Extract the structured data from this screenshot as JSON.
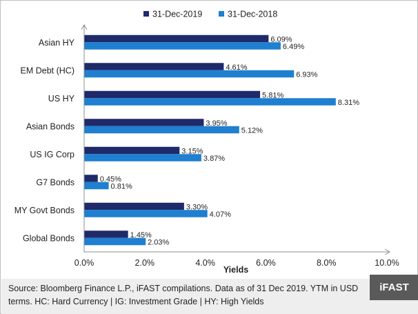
{
  "chart_data": {
    "type": "bar",
    "orientation": "horizontal",
    "categories": [
      "Asian HY",
      "EM Debt (HC)",
      "US HY",
      "Asian Bonds",
      "US IG Corp",
      "G7 Bonds",
      "MY Govt Bonds",
      "Global Bonds"
    ],
    "series": [
      {
        "name": "31-Dec-2019",
        "color": "#1f2a6b",
        "values": [
          6.09,
          4.61,
          5.81,
          3.95,
          3.15,
          0.45,
          3.3,
          1.45
        ],
        "labels": [
          "6.09%",
          "4.61%",
          "5.81%",
          "3.95%",
          "3.15%",
          "0.45%",
          "3.30%",
          "1.45%"
        ]
      },
      {
        "name": "31-Dec-2018",
        "color": "#1f7fd0",
        "values": [
          6.49,
          6.93,
          8.31,
          5.12,
          3.87,
          0.81,
          4.07,
          2.03
        ],
        "labels": [
          "6.49%",
          "6.93%",
          "8.31%",
          "5.12%",
          "3.87%",
          "0.81%",
          "4.07%",
          "2.03%"
        ]
      }
    ],
    "xlabel": "Yields",
    "ylabel": "",
    "xlim": [
      0,
      10
    ],
    "xticks": [
      "0.0%",
      "2.0%",
      "4.0%",
      "6.0%",
      "8.0%",
      "10.0%"
    ],
    "grid": false,
    "legend_position": "top"
  },
  "footer": {
    "source": "Source: Bloomberg Finance L.P., iFAST compilations. Data as of 31 Dec 2019. YTM in USD terms. HC: Hard Currency | IG: Investment Grade | HY: High Yields"
  },
  "logo": "iFAST"
}
